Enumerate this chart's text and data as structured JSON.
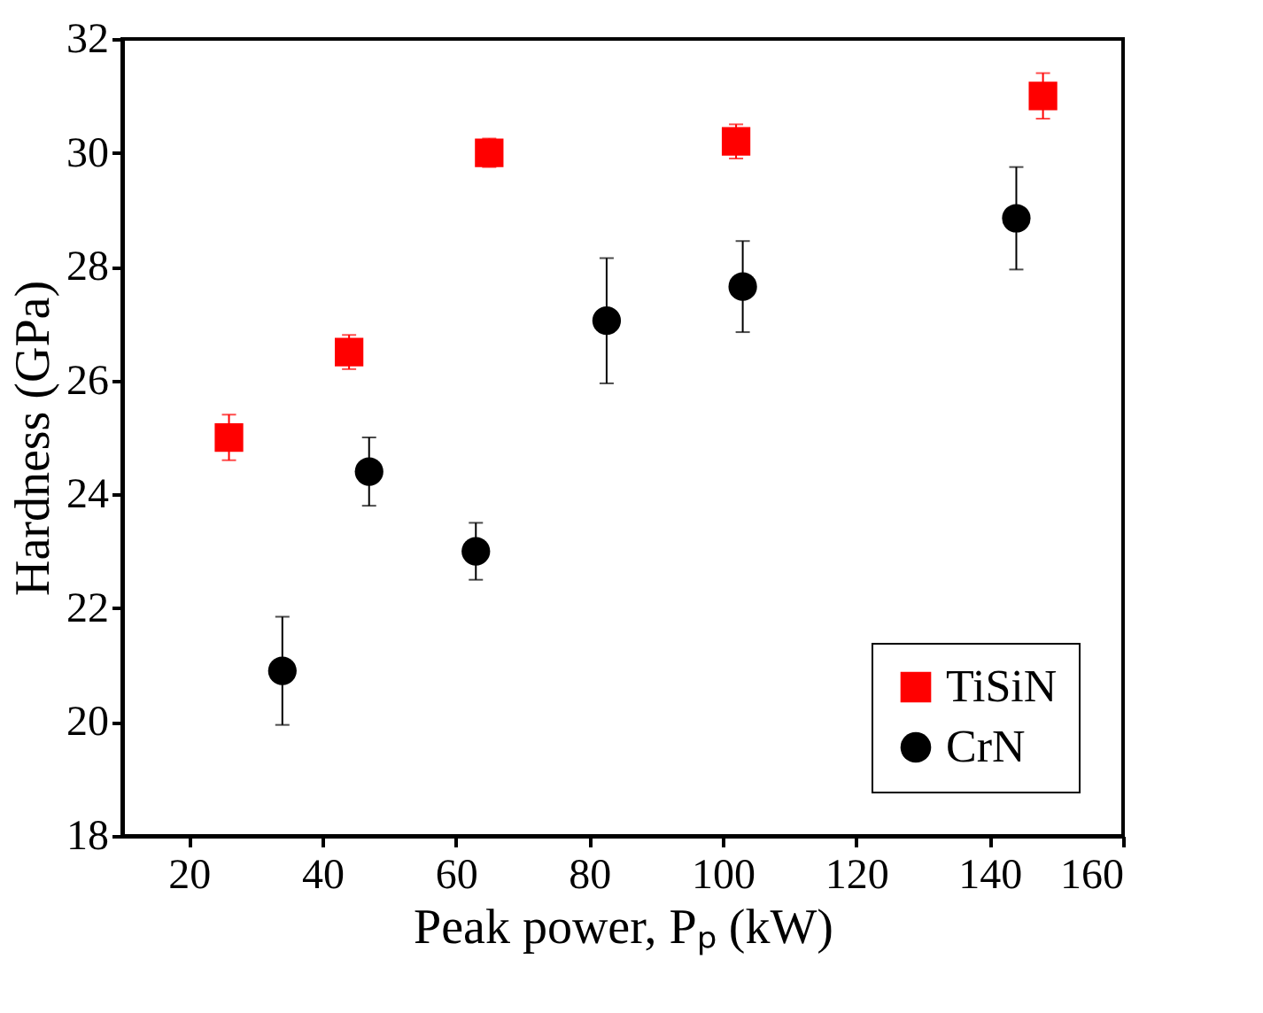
{
  "chart_data": {
    "type": "scatter",
    "xlabel": "Peak power, Pₚ (kW)",
    "ylabel": "Hardness (GPa)",
    "xlim": [
      10,
      160
    ],
    "ylim": [
      18,
      32
    ],
    "xticks": [
      20,
      40,
      60,
      80,
      100,
      120,
      140,
      160
    ],
    "yticks": [
      18,
      20,
      22,
      24,
      26,
      28,
      30,
      32
    ],
    "grid": false,
    "legend": "bottom right",
    "series": [
      {
        "name": "TiSiN",
        "color": "#ff0000",
        "marker": "square",
        "x": [
          26,
          44,
          65,
          102,
          148
        ],
        "values": [
          25.0,
          26.5,
          30.0,
          30.2,
          31.0
        ],
        "errors": [
          0.4,
          0.3,
          0.25,
          0.3,
          0.4
        ]
      },
      {
        "name": "CrN",
        "color": "#000000",
        "marker": "circle",
        "x": [
          34,
          47,
          63,
          82.6,
          103,
          144
        ],
        "values": [
          20.9,
          24.4,
          23.0,
          27.05,
          27.65,
          28.85
        ],
        "errors": [
          0.95,
          0.6,
          0.5,
          1.1,
          0.8,
          0.9
        ]
      }
    ]
  }
}
